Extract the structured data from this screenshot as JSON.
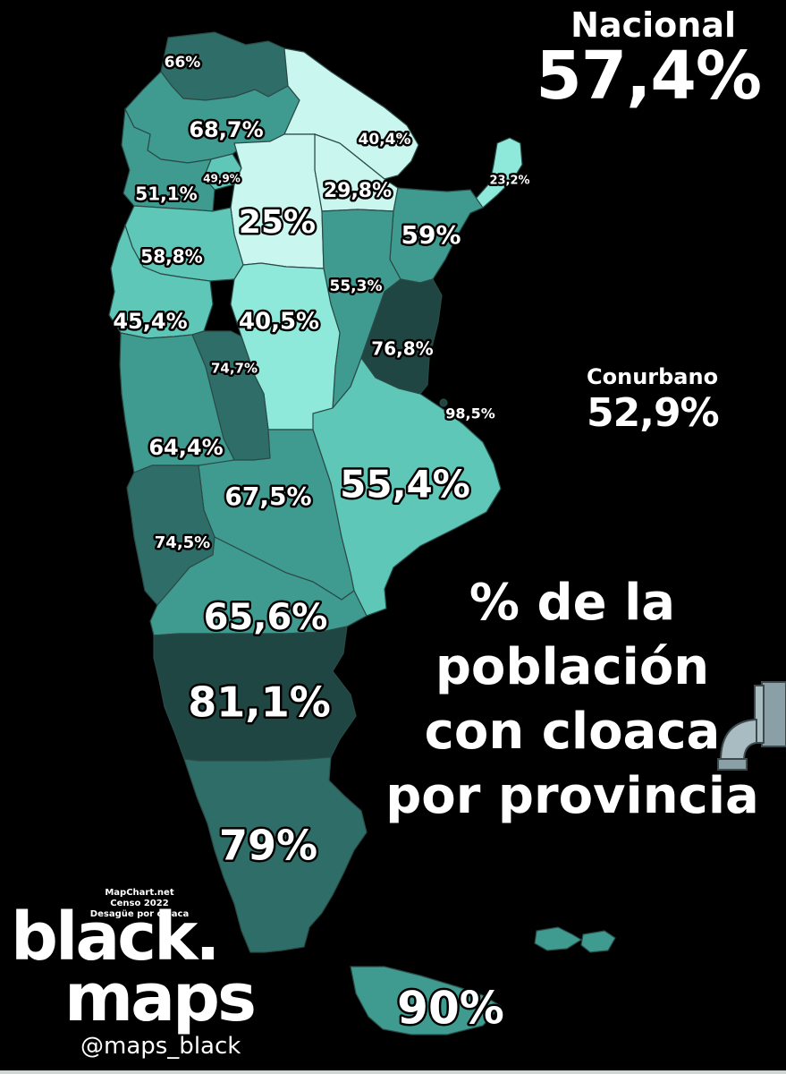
{
  "national": {
    "label": "Nacional",
    "value": "57,4%"
  },
  "conurbano": {
    "label": "Conurbano",
    "value": "52,9%"
  },
  "title": {
    "line1": "% de la",
    "line2": "población",
    "line3": "con cloaca",
    "line4": "por provincia"
  },
  "credits": {
    "line1": "MapChart.net",
    "line2": "Censo 2022",
    "line3": "Desagüe por cloaca"
  },
  "logo": {
    "line1": "black.",
    "line2": "maps",
    "handle": "@maps_black"
  },
  "icons": {
    "pipe": "pipe-icon"
  },
  "colors": {
    "background": "#000000",
    "very_light": "#c9f6ee",
    "light": "#8ee9da",
    "mid_light": "#5fc7b8",
    "mid": "#3f9a90",
    "mid_dark": "#2f6e68",
    "dark": "#1f4643"
  },
  "provinces": [
    {
      "name": "Jujuy",
      "value": "66%"
    },
    {
      "name": "Salta",
      "value": "68,7%"
    },
    {
      "name": "Formosa",
      "value": "40,4%"
    },
    {
      "name": "Misiones",
      "value": "23,2%"
    },
    {
      "name": "Catamarca",
      "value": "51,1%"
    },
    {
      "name": "Tucumán",
      "value": "49,9%"
    },
    {
      "name": "Santiago del Estero",
      "value": "25%"
    },
    {
      "name": "Chaco",
      "value": "29,8%"
    },
    {
      "name": "Corrientes",
      "value": "59%"
    },
    {
      "name": "La Rioja",
      "value": "58,8%"
    },
    {
      "name": "Santa Fe",
      "value": "55,3%"
    },
    {
      "name": "San Juan",
      "value": "45,4%"
    },
    {
      "name": "Córdoba",
      "value": "40,5%"
    },
    {
      "name": "Entre Ríos",
      "value": "76,8%"
    },
    {
      "name": "San Luis",
      "value": "74,7%"
    },
    {
      "name": "CABA",
      "value": "98,5%"
    },
    {
      "name": "Mendoza",
      "value": "64,4%"
    },
    {
      "name": "La Pampa",
      "value": "67,5%"
    },
    {
      "name": "Buenos Aires",
      "value": "55,4%"
    },
    {
      "name": "Neuquén",
      "value": "74,5%"
    },
    {
      "name": "Río Negro",
      "value": "65,6%"
    },
    {
      "name": "Chubut",
      "value": "81,1%"
    },
    {
      "name": "Santa Cruz",
      "value": "79%"
    },
    {
      "name": "Tierra del Fuego",
      "value": "90%"
    }
  ]
}
